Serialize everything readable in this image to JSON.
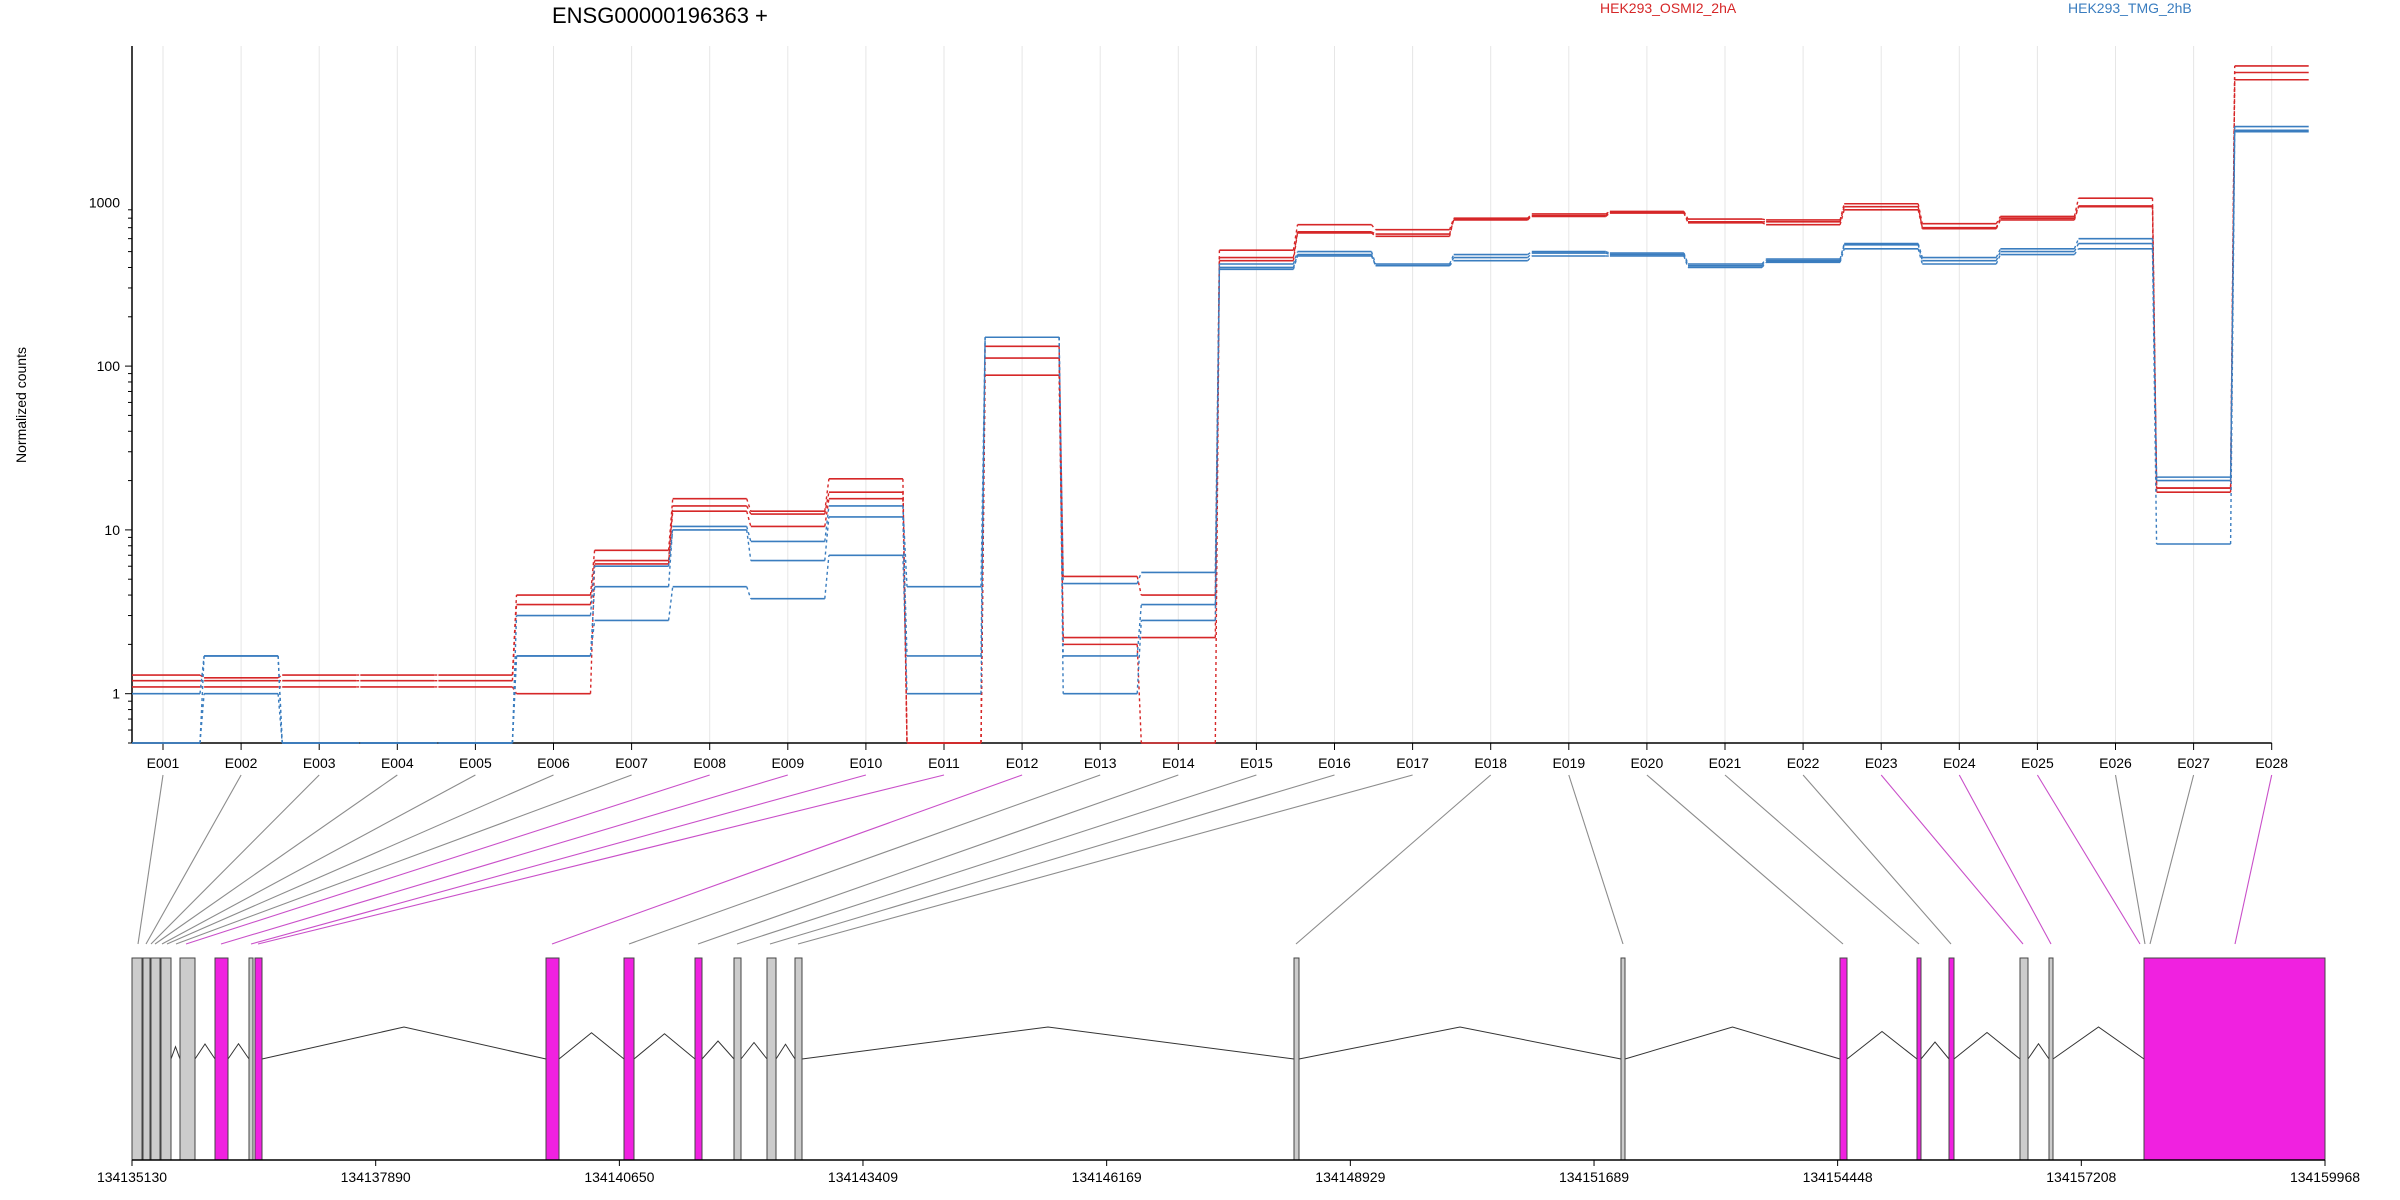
{
  "chart_data": {
    "type": "line",
    "title": "ENSG00000196363 +",
    "ylabel": "Normalized counts",
    "xlabel": "",
    "y_scale": "log",
    "ylim": [
      0.5,
      9000
    ],
    "y_ticks": [
      {
        "value": 1,
        "label": "1"
      },
      {
        "value": 10,
        "label": "10"
      },
      {
        "value": 100,
        "label": "100"
      },
      {
        "value": 1000,
        "label": "1000"
      }
    ],
    "grid": "vertical lines at exon positions",
    "legend": [
      {
        "name": "HEK293_OSMI2_2hA",
        "color": "#d62728",
        "placement": "top-center"
      },
      {
        "name": "HEK293_TMG_2hB",
        "color": "#3a7dbf",
        "placement": "top-right"
      }
    ],
    "categories": [
      "E001",
      "E002",
      "E003",
      "E004",
      "E005",
      "E006",
      "E007",
      "E008",
      "E009",
      "E010",
      "E011",
      "E012",
      "E013",
      "E014",
      "E015",
      "E016",
      "E017",
      "E018",
      "E019",
      "E020",
      "E021",
      "E022",
      "E023",
      "E024",
      "E025",
      "E026",
      "E027",
      "E028"
    ],
    "series": [
      {
        "group": "HEK293_OSMI2_2hA",
        "color": "#d62728",
        "values": [
          1.3,
          1.25,
          1.3,
          1.3,
          1.3,
          4.0,
          7.5,
          15.5,
          13.0,
          20.5,
          0.5,
          132,
          5.2,
          4.0,
          510,
          730,
          680,
          800,
          850,
          880,
          790,
          780,
          980,
          740,
          820,
          1060,
          18,
          6800
        ]
      },
      {
        "group": "HEK293_OSMI2_2hA",
        "color": "#d62728",
        "values": [
          1.2,
          1.2,
          1.2,
          1.2,
          1.2,
          3.5,
          6.5,
          14,
          12.5,
          17,
          0.5,
          112,
          2.2,
          2.2,
          460,
          660,
          640,
          780,
          830,
          870,
          760,
          760,
          940,
          700,
          800,
          950,
          18,
          6200
        ]
      },
      {
        "group": "HEK293_OSMI2_2hA",
        "color": "#d62728",
        "values": [
          1.1,
          1.1,
          1.1,
          1.1,
          1.1,
          1.0,
          6.2,
          13,
          10.5,
          15.5,
          0.5,
          88,
          2.0,
          0.5,
          440,
          650,
          620,
          790,
          820,
          860,
          750,
          730,
          900,
          690,
          780,
          940,
          17,
          5600
        ]
      },
      {
        "group": "HEK293_TMG_2hB",
        "color": "#3a7dbf",
        "values": [
          1.0,
          1.7,
          0.5,
          0.5,
          0.5,
          1.7,
          4.5,
          10.5,
          8.5,
          14,
          4.5,
          150,
          4.7,
          5.5,
          420,
          500,
          420,
          480,
          500,
          490,
          420,
          450,
          560,
          460,
          520,
          600,
          21,
          2900
        ]
      },
      {
        "group": "HEK293_TMG_2hB",
        "color": "#3a7dbf",
        "values": [
          0.5,
          1.7,
          0.5,
          0.5,
          0.5,
          3.0,
          6.0,
          10,
          6.5,
          12,
          1.7,
          150,
          1.7,
          3.5,
          400,
          480,
          410,
          460,
          490,
          480,
          410,
          440,
          550,
          440,
          500,
          560,
          20,
          2750
        ]
      },
      {
        "group": "HEK293_TMG_2hB",
        "color": "#3a7dbf",
        "values": [
          0.5,
          1.0,
          0.5,
          0.5,
          0.5,
          1.7,
          2.8,
          4.5,
          3.8,
          7.0,
          1.0,
          150,
          1.0,
          2.8,
          390,
          470,
          410,
          440,
          470,
          470,
          400,
          430,
          520,
          420,
          480,
          520,
          8.2,
          2700
        ]
      }
    ],
    "gene_model": {
      "coordinate_labels": [
        "134135130",
        "134137890",
        "134140650",
        "134143409",
        "134146169",
        "134148929",
        "134151689",
        "134154448",
        "134157208",
        "134159968"
      ],
      "coord_start": 134135130,
      "coord_end": 134159968,
      "exon_link_colors": [
        "gray",
        "gray",
        "gray",
        "gray",
        "gray",
        "gray",
        "gray",
        "magenta",
        "magenta",
        "magenta",
        "magenta",
        "magenta",
        "gray",
        "gray",
        "gray",
        "gray",
        "gray",
        "gray",
        "gray",
        "gray",
        "gray",
        "gray",
        "magenta",
        "magenta",
        "magenta",
        "gray",
        "gray",
        "magenta"
      ],
      "highlight_color": "#f021e0",
      "plain_exon_color": "#cccccc"
    }
  }
}
